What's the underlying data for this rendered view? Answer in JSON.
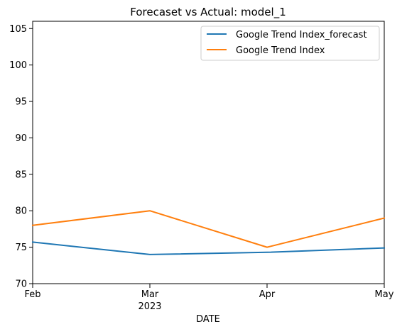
{
  "chart_data": {
    "type": "line",
    "title": "Forecaset vs Actual: model_1",
    "xlabel": "DATE",
    "ylabel": "",
    "x": [
      "2023-02",
      "2023-03",
      "2023-04",
      "2023-05"
    ],
    "x_tick_labels": [
      "Feb",
      "Mar",
      "Apr",
      "May"
    ],
    "x_year_label": "2023",
    "ylim": [
      70,
      106
    ],
    "y_ticks": [
      70,
      75,
      80,
      85,
      90,
      95,
      100,
      105
    ],
    "grid": false,
    "legend_position": "top-right",
    "series": [
      {
        "name": "Google Trend Index_forecast",
        "color": "#1f77b4",
        "values": [
          75.7,
          74.0,
          74.3,
          74.9
        ]
      },
      {
        "name": "Google Trend Index",
        "color": "#ff7f0e",
        "values": [
          78,
          80,
          75,
          79
        ]
      }
    ]
  }
}
